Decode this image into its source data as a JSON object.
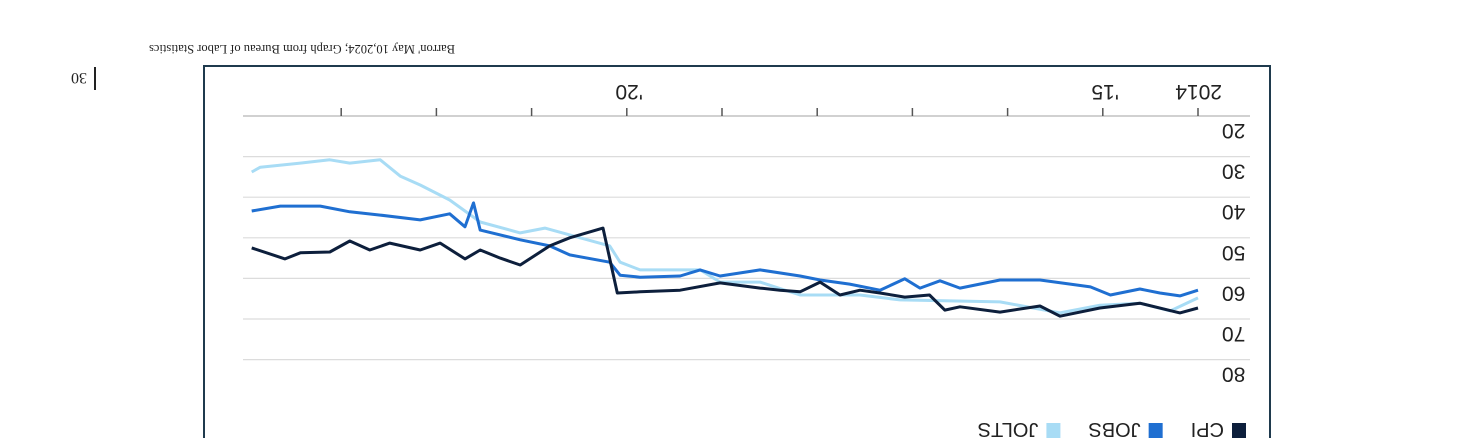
{
  "caption": "Barron' May 10,2024; Graph from Bureau of Labor Statistics",
  "page_number": "30",
  "chart_data": {
    "type": "line",
    "title": "",
    "xlabel": "",
    "ylabel": "",
    "xlim": [
      2014,
      2024
    ],
    "ylim": [
      20,
      80
    ],
    "yticks": [
      20,
      30,
      40,
      50,
      60,
      70,
      80
    ],
    "xtick_years": [
      2014,
      2015,
      2016,
      2017,
      2018,
      2019,
      2020,
      2021,
      2022,
      2023
    ],
    "xtick_labels": {
      "2014": "2014",
      "2015": "'15",
      "2020": "'20"
    },
    "grid": "horizontal",
    "legend_placement": "top-left",
    "series": [
      {
        "name": "CPI",
        "color": "#0d1f3c",
        "points": [
          [
            2014.0,
            67.3
          ],
          [
            2014.19,
            68.5
          ],
          [
            2014.61,
            66.1
          ],
          [
            2015.03,
            67.3
          ],
          [
            2015.45,
            69.3
          ],
          [
            2015.66,
            66.8
          ],
          [
            2016.08,
            68.3
          ],
          [
            2016.5,
            67.0
          ],
          [
            2016.66,
            67.8
          ],
          [
            2016.82,
            64.1
          ],
          [
            2017.08,
            64.6
          ],
          [
            2017.34,
            63.6
          ],
          [
            2017.55,
            62.9
          ],
          [
            2017.76,
            64.1
          ],
          [
            2017.97,
            60.9
          ],
          [
            2018.18,
            63.3
          ],
          [
            2018.39,
            62.9
          ],
          [
            2018.6,
            62.4
          ],
          [
            2019.02,
            61.1
          ],
          [
            2019.44,
            62.9
          ],
          [
            2019.86,
            63.3
          ],
          [
            2020.1,
            63.6
          ],
          [
            2020.25,
            47.6
          ],
          [
            2020.6,
            50.0
          ],
          [
            2020.81,
            52.0
          ],
          [
            2021.12,
            56.7
          ],
          [
            2021.33,
            55.0
          ],
          [
            2021.54,
            53.0
          ],
          [
            2021.7,
            55.2
          ],
          [
            2021.96,
            51.3
          ],
          [
            2022.17,
            53.0
          ],
          [
            2022.49,
            51.3
          ],
          [
            2022.7,
            53.0
          ],
          [
            2022.91,
            50.8
          ],
          [
            2023.12,
            53.5
          ],
          [
            2023.43,
            53.7
          ],
          [
            2023.59,
            55.2
          ],
          [
            2023.94,
            52.5
          ]
        ]
      },
      {
        "name": "JOBS",
        "color": "#1f6fd1",
        "points": [
          [
            2014.0,
            62.9
          ],
          [
            2014.19,
            64.3
          ],
          [
            2014.4,
            63.6
          ],
          [
            2014.61,
            62.6
          ],
          [
            2014.92,
            64.1
          ],
          [
            2015.13,
            62.1
          ],
          [
            2015.66,
            60.4
          ],
          [
            2016.08,
            60.4
          ],
          [
            2016.5,
            62.4
          ],
          [
            2016.71,
            60.6
          ],
          [
            2016.92,
            62.4
          ],
          [
            2017.08,
            60.1
          ],
          [
            2017.34,
            62.9
          ],
          [
            2017.66,
            61.4
          ],
          [
            2017.97,
            60.4
          ],
          [
            2018.18,
            59.4
          ],
          [
            2018.6,
            57.9
          ],
          [
            2019.02,
            59.4
          ],
          [
            2019.23,
            57.9
          ],
          [
            2019.44,
            59.4
          ],
          [
            2019.86,
            59.7
          ],
          [
            2020.07,
            59.2
          ],
          [
            2020.18,
            56.0
          ],
          [
            2020.6,
            54.2
          ],
          [
            2020.81,
            52.0
          ],
          [
            2021.12,
            50.5
          ],
          [
            2021.54,
            48.1
          ],
          [
            2021.61,
            41.4
          ],
          [
            2021.7,
            47.3
          ],
          [
            2021.86,
            44.1
          ],
          [
            2022.17,
            45.6
          ],
          [
            2022.59,
            44.4
          ],
          [
            2022.91,
            43.6
          ],
          [
            2023.22,
            42.2
          ],
          [
            2023.64,
            42.2
          ],
          [
            2023.94,
            43.4
          ]
        ]
      },
      {
        "name": "JOLTS",
        "color": "#a8dcf5",
        "points": [
          [
            2014.0,
            64.8
          ],
          [
            2014.29,
            68.0
          ],
          [
            2014.61,
            66.1
          ],
          [
            2015.03,
            66.6
          ],
          [
            2015.45,
            68.5
          ],
          [
            2016.08,
            65.8
          ],
          [
            2017.13,
            65.3
          ],
          [
            2017.55,
            64.1
          ],
          [
            2018.18,
            64.1
          ],
          [
            2018.6,
            60.9
          ],
          [
            2019.02,
            60.9
          ],
          [
            2019.23,
            57.9
          ],
          [
            2019.86,
            57.9
          ],
          [
            2020.07,
            56.0
          ],
          [
            2020.18,
            52.0
          ],
          [
            2020.49,
            50.0
          ],
          [
            2020.86,
            47.6
          ],
          [
            2021.12,
            48.8
          ],
          [
            2021.54,
            46.1
          ],
          [
            2021.86,
            40.7
          ],
          [
            2022.17,
            37.0
          ],
          [
            2022.38,
            34.8
          ],
          [
            2022.59,
            30.8
          ],
          [
            2022.91,
            31.6
          ],
          [
            2023.12,
            30.8
          ],
          [
            2023.43,
            31.6
          ],
          [
            2023.85,
            32.6
          ],
          [
            2023.94,
            33.8
          ]
        ]
      }
    ]
  }
}
